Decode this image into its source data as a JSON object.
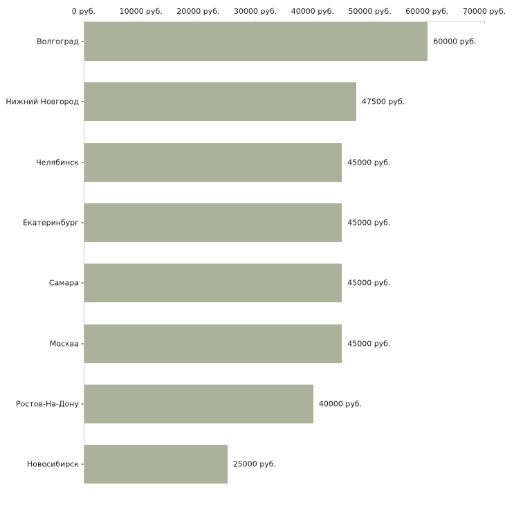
{
  "chart_data": {
    "type": "bar",
    "orientation": "horizontal",
    "title": "",
    "xlabel": "",
    "ylabel": "",
    "unit": "руб.",
    "categories": [
      "Волгоград",
      "Нижний Новгород",
      "Челябинск",
      "Екатеринбург",
      "Самара",
      "Москва",
      "Ростов-На-Дону",
      "Новосибирск"
    ],
    "values": [
      60000,
      47500,
      45000,
      45000,
      45000,
      45000,
      40000,
      25000
    ],
    "value_labels": [
      "60000 руб.",
      "47500 руб.",
      "45000 руб.",
      "45000 руб.",
      "45000 руб.",
      "45000 руб.",
      "40000 руб.",
      "25000 руб."
    ],
    "x_ticks": [
      0,
      10000,
      20000,
      30000,
      40000,
      50000,
      60000,
      70000
    ],
    "x_tick_labels": [
      "0 руб.",
      "10000 руб.",
      "20000 руб.",
      "30000 руб.",
      "40000 руб.",
      "50000 руб.",
      "60000 руб.",
      "70000 руб."
    ],
    "xlim": [
      0,
      70000
    ],
    "grid": false,
    "legend": false,
    "colors": {
      "bar": "#abb19b",
      "axis": "#c9c9c0",
      "x_tick_mark": "#c9cdb9",
      "category_tick_mark": "#b0a98a",
      "text": "#1a1a1a",
      "background": "#ffffff"
    }
  }
}
